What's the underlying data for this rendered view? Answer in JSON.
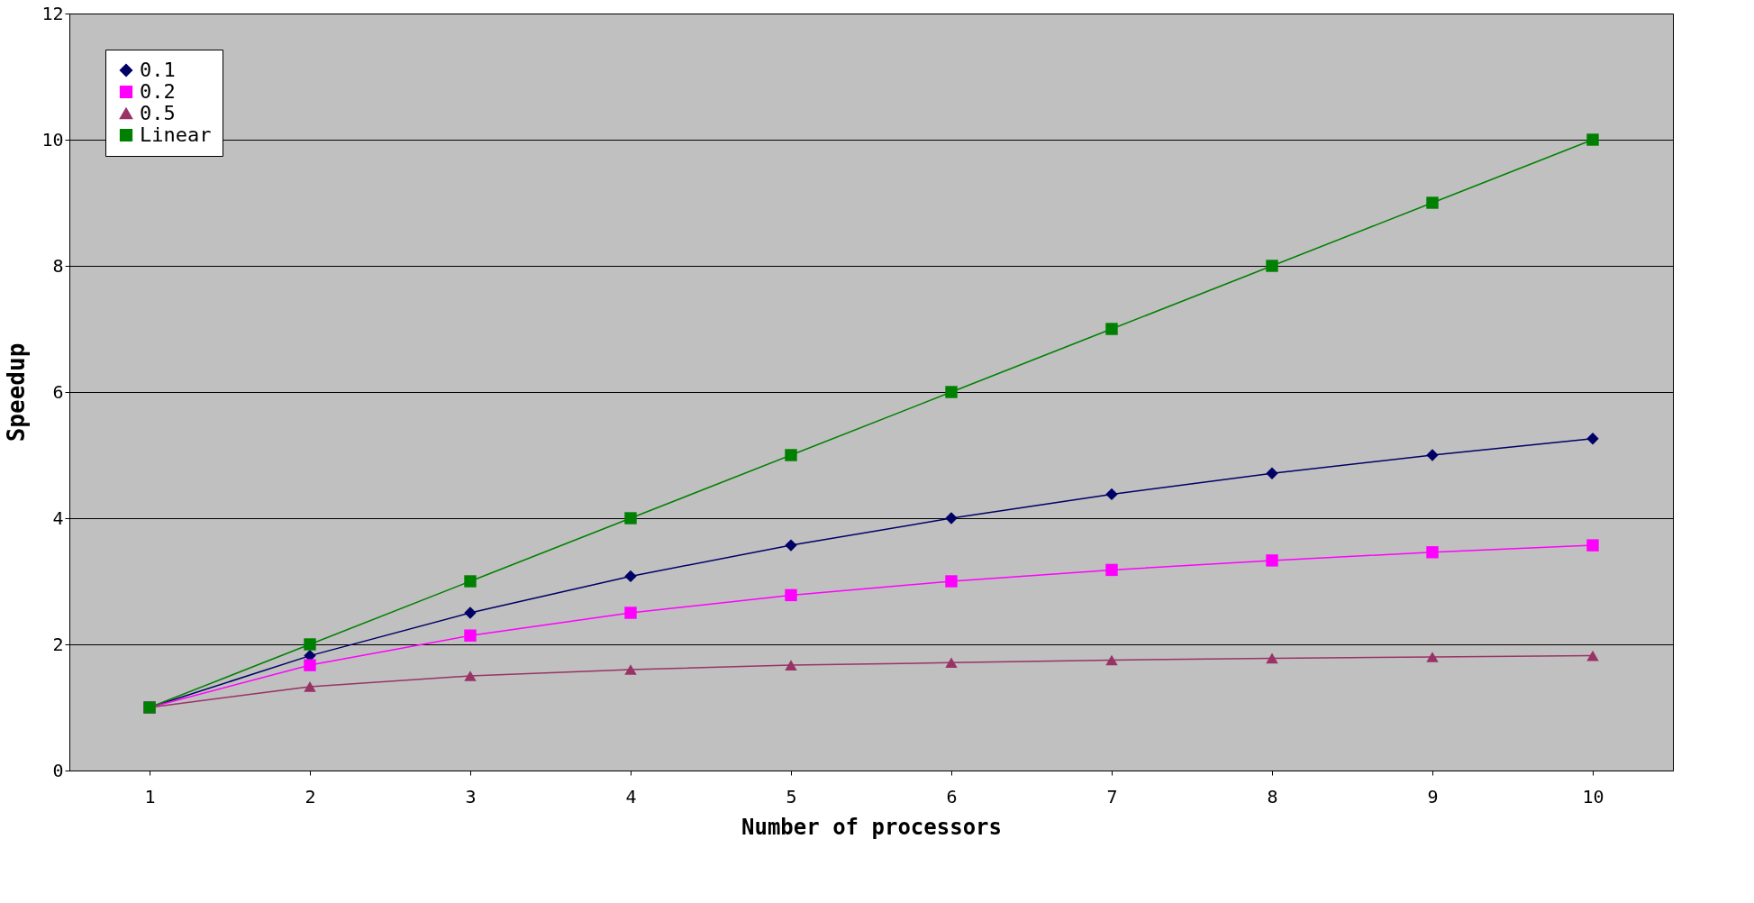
{
  "chart_data": {
    "type": "line",
    "xlabel": "Number of processors",
    "ylabel": "Speedup",
    "categories": [
      "1",
      "2",
      "3",
      "4",
      "5",
      "6",
      "7",
      "8",
      "9",
      "10"
    ],
    "series": [
      {
        "name": "0.1",
        "color": "#000066",
        "marker": "diamond",
        "values": [
          1,
          1.82,
          2.5,
          3.08,
          3.57,
          4.0,
          4.38,
          4.71,
          5.0,
          5.26
        ]
      },
      {
        "name": "0.2",
        "color": "#ff00ff",
        "marker": "square",
        "values": [
          1,
          1.67,
          2.14,
          2.5,
          2.78,
          3.0,
          3.18,
          3.33,
          3.46,
          3.57
        ]
      },
      {
        "name": "0.5",
        "color": "#993366",
        "marker": "triangle",
        "values": [
          1,
          1.33,
          1.5,
          1.6,
          1.67,
          1.71,
          1.75,
          1.78,
          1.8,
          1.82
        ]
      },
      {
        "name": "Linear",
        "color": "#008000",
        "marker": "square",
        "values": [
          1,
          2,
          3,
          4,
          5,
          6,
          7,
          8,
          9,
          10
        ]
      }
    ],
    "ylim": [
      0,
      12
    ],
    "yticks": [
      0,
      2,
      4,
      6,
      8,
      10,
      12
    ],
    "grid": "y",
    "legend": "top left"
  }
}
